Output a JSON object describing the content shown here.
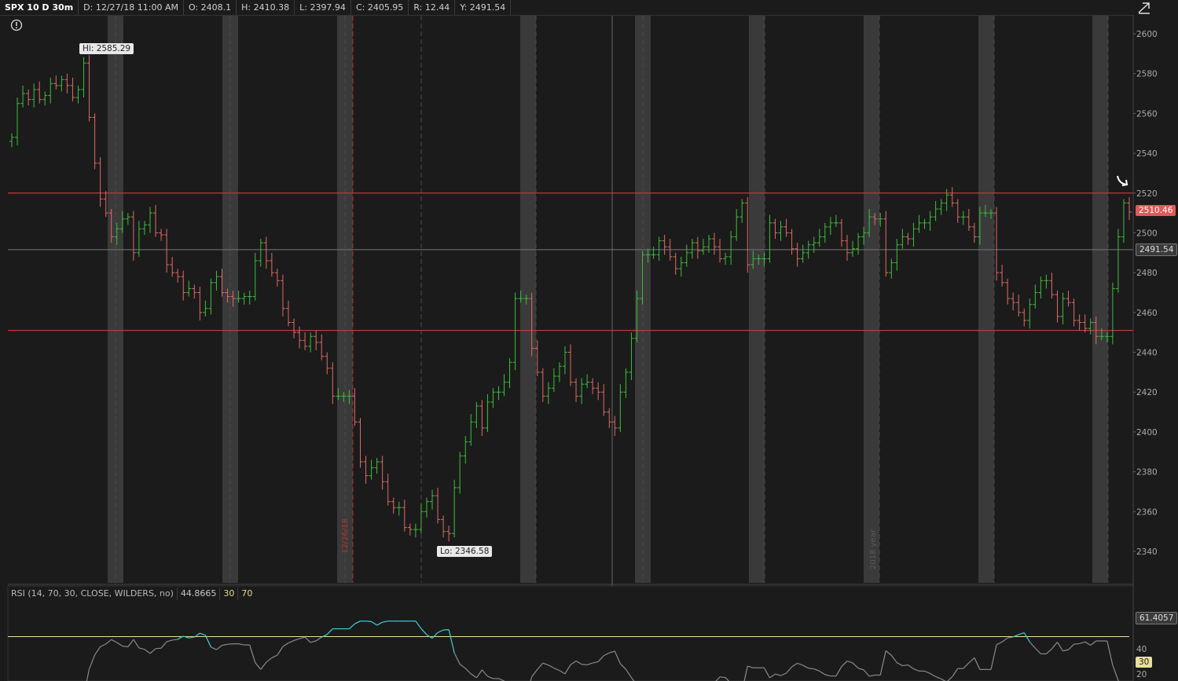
{
  "header": {
    "symbol": "SPX 10 D 30m",
    "date": "D: 12/27/18 11:00 AM",
    "open": "O: 2408.1",
    "high": "H: 2410.38",
    "low": "L: 2397.94",
    "close": "C: 2405.95",
    "range": "R: 12.44",
    "y": "Y: 2491.54"
  },
  "price_chart": {
    "y_ticks": [
      "2600",
      "2580",
      "2560",
      "2540",
      "2520",
      "2500",
      "2480",
      "2460",
      "2440",
      "2420",
      "2400",
      "2380",
      "2360",
      "2340"
    ],
    "hi_label": "Hi: 2585.29",
    "lo_label": "Lo: 2346.58",
    "last_price": "2510.46",
    "cursor_price": "2491.54",
    "divider_labels": [
      "12/26/18",
      "2018 year"
    ],
    "horizontal_levels": [
      2520,
      2451
    ],
    "colors": {
      "up": "#3cbf3c",
      "down": "#e06a66",
      "level": "#c0393b",
      "shade": "#3a3a3a",
      "background": "#1b1b1b"
    }
  },
  "rsi": {
    "title": "RSI (14, 70, 30, CLOSE, WILDERS, no)",
    "value": "44.8665",
    "oversold": "30",
    "overbought": "70",
    "y_ticks": [
      "40",
      "20"
    ],
    "last_value": "61.4057",
    "os_badge": "30",
    "colors": {
      "line": "#8a8a8a",
      "oversold_line": "#3fd0d8",
      "bands": "#e8dfa0"
    }
  },
  "chart_data": {
    "type": "line",
    "title": "SPX 10 D 30m",
    "ylabel": "",
    "ylim": [
      2325,
      2610
    ],
    "series": [
      {
        "name": "SPX",
        "values": [
          2548,
          2565,
          2570,
          2567,
          2572,
          2567,
          2569,
          2575,
          2574,
          2577,
          2574,
          2568,
          2572,
          2585.29,
          2558,
          2535,
          2517,
          2510,
          2498,
          2502,
          2507,
          2508,
          2490,
          2502,
          2504,
          2510,
          2500,
          2499,
          2484,
          2480,
          2478,
          2470,
          2472,
          2470,
          2460,
          2462,
          2475,
          2478,
          2470,
          2468,
          2467,
          2467,
          2468,
          2468,
          2486,
          2495,
          2486,
          2480,
          2476,
          2462,
          2455,
          2450,
          2446,
          2443,
          2448,
          2445,
          2438,
          2432,
          2418,
          2418,
          2418,
          2418,
          2405,
          2385,
          2378,
          2382,
          2385,
          2375,
          2365,
          2362,
          2362,
          2352,
          2351,
          2351,
          2360,
          2365,
          2368,
          2356,
          2350,
          2349,
          2372,
          2388,
          2395,
          2405,
          2413,
          2402,
          2415,
          2420,
          2420,
          2425,
          2435,
          2467,
          2467,
          2467,
          2442,
          2430,
          2418,
          2422,
          2428,
          2433,
          2440,
          2425,
          2418,
          2424,
          2425,
          2422,
          2420,
          2410,
          2405,
          2402,
          2420,
          2430,
          2447,
          2467,
          2489,
          2489,
          2489,
          2496,
          2493,
          2488,
          2482,
          2485,
          2490,
          2495,
          2491,
          2493,
          2497,
          2493,
          2487,
          2488,
          2498,
          2508,
          2515,
          2484,
          2487,
          2487,
          2487,
          2505,
          2500,
          2503,
          2500,
          2492,
          2487,
          2490,
          2494,
          2495,
          2498,
          2503,
          2505,
          2505,
          2496,
          2490,
          2492,
          2498,
          2500,
          2508,
          2507,
          2507,
          2480,
          2485,
          2494,
          2498,
          2497,
          2502,
          2505,
          2505,
          2508,
          2512,
          2515,
          2519,
          2515,
          2508,
          2508,
          2503,
          2498,
          2510,
          2510,
          2510,
          2480,
          2475,
          2467,
          2465,
          2460,
          2456,
          2464,
          2470,
          2476,
          2476,
          2469,
          2458,
          2467,
          2465,
          2456,
          2455,
          2452,
          2455,
          2448,
          2448,
          2448,
          2472,
          2498,
          2515,
          2510.46
        ]
      }
    ]
  }
}
